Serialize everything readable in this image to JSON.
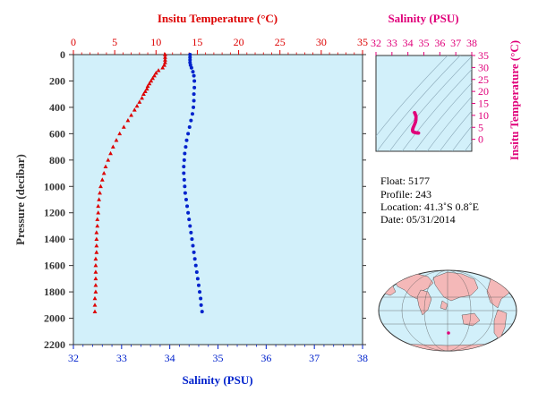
{
  "chart_data": [
    {
      "type": "scatter",
      "name_x_top": "Insitu Temperature (°C)",
      "xlabel_bottom": "Salinity (PSU)",
      "ylabel": "Pressure (decibar)",
      "temp_axis": {
        "range": [
          0,
          35
        ],
        "ticks": [
          "0",
          "5",
          "10",
          "15",
          "20",
          "25",
          "30",
          "35"
        ]
      },
      "sal_axis": {
        "range": [
          32,
          38
        ],
        "ticks": [
          "32",
          "33",
          "34",
          "35",
          "36",
          "37",
          "38"
        ]
      },
      "pressure_axis": {
        "range": [
          0,
          2200
        ],
        "ticks": [
          "0",
          "200",
          "400",
          "600",
          "800",
          "1000",
          "1200",
          "1400",
          "1600",
          "1800",
          "2000",
          "2200"
        ]
      },
      "series": [
        {
          "color": "#dd0000",
          "marker": "triangle",
          "points": [
            [
              11.1,
              0
            ],
            [
              11.1,
              20
            ],
            [
              11.1,
              40
            ],
            [
              11.1,
              60
            ],
            [
              11.0,
              80
            ],
            [
              10.8,
              100
            ],
            [
              10.3,
              120
            ],
            [
              10.0,
              140
            ],
            [
              9.8,
              160
            ],
            [
              9.6,
              180
            ],
            [
              9.4,
              200
            ],
            [
              9.2,
              220
            ],
            [
              9.0,
              240
            ],
            [
              8.9,
              260
            ],
            [
              8.7,
              280
            ],
            [
              8.5,
              300
            ],
            [
              8.3,
              330
            ],
            [
              8.0,
              360
            ],
            [
              7.7,
              390
            ],
            [
              7.4,
              420
            ],
            [
              7.0,
              460
            ],
            [
              6.6,
              500
            ],
            [
              6.1,
              550
            ],
            [
              5.6,
              600
            ],
            [
              5.2,
              650
            ],
            [
              4.8,
              700
            ],
            [
              4.5,
              750
            ],
            [
              4.2,
              800
            ],
            [
              3.9,
              850
            ],
            [
              3.7,
              900
            ],
            [
              3.5,
              950
            ],
            [
              3.3,
              1000
            ],
            [
              3.2,
              1050
            ],
            [
              3.1,
              1100
            ],
            [
              3.0,
              1150
            ],
            [
              3.0,
              1200
            ],
            [
              2.9,
              1250
            ],
            [
              2.9,
              1300
            ],
            [
              2.8,
              1350
            ],
            [
              2.8,
              1400
            ],
            [
              2.8,
              1450
            ],
            [
              2.8,
              1500
            ],
            [
              2.7,
              1550
            ],
            [
              2.7,
              1600
            ],
            [
              2.7,
              1650
            ],
            [
              2.7,
              1700
            ],
            [
              2.7,
              1750
            ],
            [
              2.7,
              1800
            ],
            [
              2.6,
              1850
            ],
            [
              2.6,
              1900
            ],
            [
              2.6,
              1950
            ]
          ]
        },
        {
          "color": "#0022cc",
          "marker": "circle",
          "points": [
            [
              34.42,
              0
            ],
            [
              34.42,
              20
            ],
            [
              34.42,
              40
            ],
            [
              34.42,
              60
            ],
            [
              34.43,
              80
            ],
            [
              34.45,
              100
            ],
            [
              34.48,
              130
            ],
            [
              34.5,
              160
            ],
            [
              34.51,
              200
            ],
            [
              34.51,
              250
            ],
            [
              34.5,
              300
            ],
            [
              34.5,
              350
            ],
            [
              34.49,
              400
            ],
            [
              34.47,
              450
            ],
            [
              34.44,
              500
            ],
            [
              34.41,
              550
            ],
            [
              34.38,
              600
            ],
            [
              34.35,
              650
            ],
            [
              34.33,
              700
            ],
            [
              34.31,
              750
            ],
            [
              34.3,
              800
            ],
            [
              34.29,
              850
            ],
            [
              34.29,
              900
            ],
            [
              34.3,
              950
            ],
            [
              34.31,
              1000
            ],
            [
              34.32,
              1050
            ],
            [
              34.34,
              1100
            ],
            [
              34.36,
              1150
            ],
            [
              34.38,
              1200
            ],
            [
              34.4,
              1250
            ],
            [
              34.42,
              1300
            ],
            [
              34.44,
              1350
            ],
            [
              34.46,
              1400
            ],
            [
              34.48,
              1450
            ],
            [
              34.5,
              1500
            ],
            [
              34.52,
              1550
            ],
            [
              34.54,
              1600
            ],
            [
              34.56,
              1650
            ],
            [
              34.58,
              1700
            ],
            [
              34.6,
              1750
            ],
            [
              34.62,
              1800
            ],
            [
              34.64,
              1850
            ],
            [
              34.65,
              1900
            ],
            [
              34.67,
              1950
            ]
          ]
        }
      ]
    },
    {
      "type": "scatter",
      "title": "Salinity (PSU)",
      "ylabel": "Insitu Temperature (°C)",
      "sal_axis": {
        "range": [
          32,
          38
        ],
        "ticks": [
          "32",
          "33",
          "34",
          "35",
          "36",
          "37",
          "38"
        ]
      },
      "temp_axis": {
        "range": [
          -5,
          35
        ],
        "ticks": [
          "0",
          "5",
          "10",
          "15",
          "20",
          "25",
          "30",
          "35"
        ]
      },
      "color": "#e0007a"
    }
  ],
  "info": {
    "float": "Float:  5177",
    "profile": "Profile:  243",
    "location": "Location:  41.3˚S   0.8˚E",
    "date": "Date:  05/31/2014"
  },
  "colors": {
    "plot_bg": "#d2f0fa",
    "temp": "#dd0000",
    "sal": "#0022cc",
    "ts": "#e0007a",
    "axis_text": "#333333"
  }
}
